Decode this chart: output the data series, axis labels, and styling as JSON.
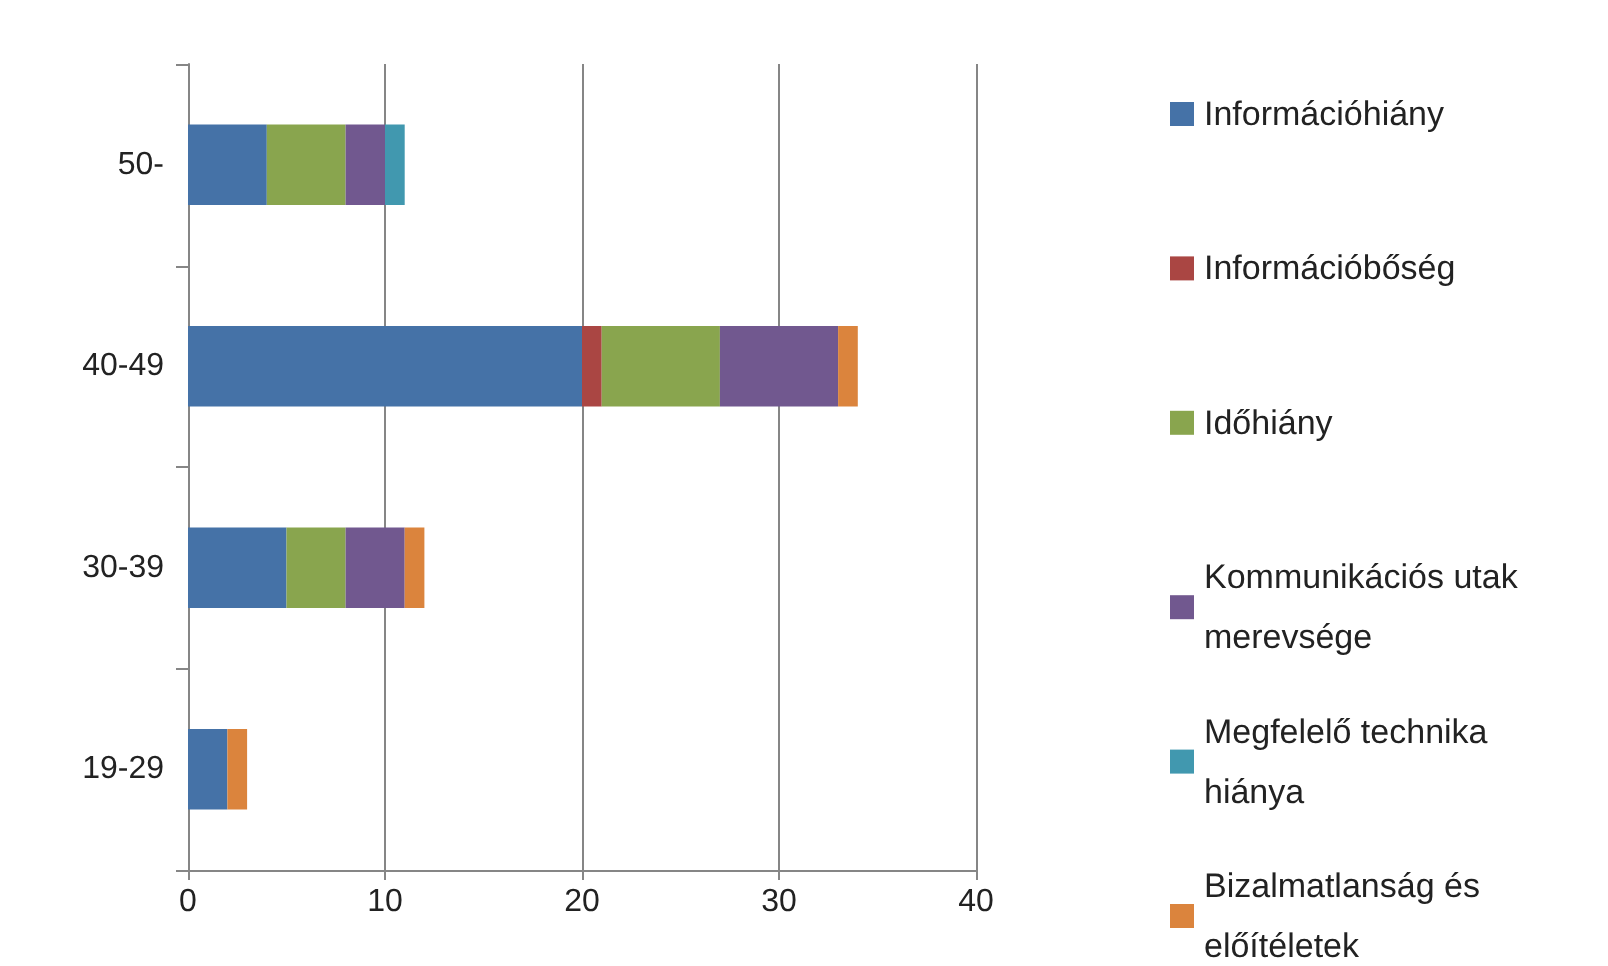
{
  "chart_data": {
    "type": "bar",
    "orientation": "horizontal",
    "stacked": true,
    "categories": [
      "50-",
      "40-49",
      "30-39",
      "19-29"
    ],
    "series": [
      {
        "name": "Információhiány",
        "color": "#4572a7",
        "values": [
          4,
          20,
          5,
          2
        ]
      },
      {
        "name": "Információbőség",
        "color": "#aa4643",
        "values": [
          null,
          1,
          null,
          null
        ]
      },
      {
        "name": "Időhiány",
        "color": "#89a54e",
        "values": [
          4,
          6,
          3,
          null
        ]
      },
      {
        "name": "Kommunikációs utak merevsége",
        "color": "#71588f",
        "values": [
          2,
          6,
          3,
          null
        ]
      },
      {
        "name": "Megfelelő technika hiánya",
        "color": "#4198af",
        "values": [
          1,
          null,
          null,
          null
        ]
      },
      {
        "name": "Bizalmatlanság és előítéletek",
        "color": "#db843d",
        "values": [
          null,
          1,
          1,
          1
        ]
      }
    ],
    "xlim": [
      0,
      40
    ],
    "xticks": [
      0,
      10,
      20,
      30,
      40
    ],
    "grid": "x",
    "legend": "right"
  }
}
